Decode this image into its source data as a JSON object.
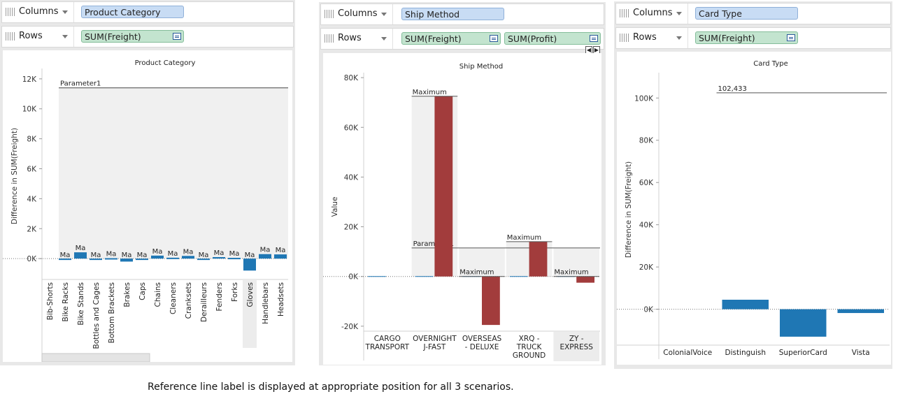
{
  "caption": "Reference line label is displayed at appropriate position for all 3 scenarios.",
  "panels": [
    {
      "columns_label": "Columns",
      "rows_label": "Rows",
      "columns_pill": "Product Category",
      "rows_pills": [
        "SUM(Freight)"
      ]
    },
    {
      "columns_label": "Columns",
      "rows_label": "Rows",
      "columns_pill": "Ship Method",
      "rows_pills": [
        "SUM(Freight)",
        "SUM(Profit)"
      ]
    },
    {
      "columns_label": "Columns",
      "rows_label": "Rows",
      "columns_pill": "Card Type",
      "rows_pills": [
        "SUM(Freight)"
      ]
    }
  ],
  "chart_data": [
    {
      "type": "bar",
      "title": "Product Category",
      "ylabel": "Difference in SUM(Freight)",
      "ylim": [
        -1300,
        12600
      ],
      "yticks": [
        0,
        2000,
        4000,
        6000,
        8000,
        10000,
        12000
      ],
      "ytick_labels": [
        "0K",
        "2K",
        "4K",
        "6K",
        "8K",
        "10K",
        "12K"
      ],
      "categories": [
        "Bib-Shorts",
        "Bike Racks",
        "Bike Stands",
        "Bottles and Cages",
        "Bottom Brackets",
        "Brakes",
        "Caps",
        "Chains",
        "Cleaners",
        "Cranksets",
        "Derailleurs",
        "Fenders",
        "Forks",
        "Gloves",
        "Handlebars",
        "Headsets"
      ],
      "values": [
        0,
        -60,
        420,
        -40,
        30,
        -200,
        -30,
        200,
        60,
        180,
        -40,
        100,
        50,
        -800,
        300,
        280
      ],
      "bar_labels": [
        "",
        "Ma",
        "Ma",
        "Ma",
        "Ma",
        "Ma",
        "Ma",
        "Ma",
        "Ma",
        "Ma",
        "Ma",
        "Ma",
        "Ma",
        "Ma",
        "Ma",
        "Ma"
      ],
      "highlight_category": "Gloves",
      "reference_line": {
        "label": "Parameter1",
        "value": 11400
      },
      "colors": {
        "bar": "#1f77b4",
        "band": "#f0f0f0"
      }
    },
    {
      "type": "bar",
      "title": "Ship Method",
      "ylabel": "Value",
      "ylim": [
        -22000,
        82000
      ],
      "yticks": [
        -20000,
        0,
        20000,
        40000,
        60000,
        80000
      ],
      "ytick_labels": [
        "-20K",
        "0K",
        "20K",
        "40K",
        "60K",
        "80K"
      ],
      "categories": [
        "CARGO\nTRANSPORT",
        "OVERNIGHT\nJ-FAST",
        "OVERSEAS\n- DELUXE",
        "XRQ -\nTRUCK\nGROUND",
        "ZY -\nEXPRESS"
      ],
      "series": [
        {
          "values": [
            0,
            0,
            0,
            0,
            0
          ]
        },
        {
          "values": [
            0,
            72500,
            -19500,
            14000,
            -2500
          ]
        }
      ],
      "bar_labels": [
        "",
        "Maximum",
        "Maximum",
        "Maximum",
        "Maximum"
      ],
      "reference_line": {
        "label": "Parameter1",
        "value": 11500
      },
      "highlight_category": "ZY -\nEXPRESS",
      "colors": {
        "profit": "#a23c3c",
        "freight": "#1f77b4",
        "band": "#f0f0f0"
      }
    },
    {
      "type": "bar",
      "title": "Card Type",
      "ylabel": "Difference in SUM(Freight)",
      "ylim": [
        -17000,
        112000
      ],
      "yticks": [
        0,
        20000,
        40000,
        60000,
        80000,
        100000
      ],
      "ytick_labels": [
        "0K",
        "20K",
        "40K",
        "60K",
        "80K",
        "100K"
      ],
      "categories": [
        "ColonialVoice",
        "Distinguish",
        "SuperiorCard",
        "Vista"
      ],
      "values": [
        0,
        4500,
        -13000,
        -1800
      ],
      "reference_line": {
        "label": "102,433",
        "value": 102433
      },
      "colors": {
        "bar": "#1f77b4"
      }
    }
  ]
}
